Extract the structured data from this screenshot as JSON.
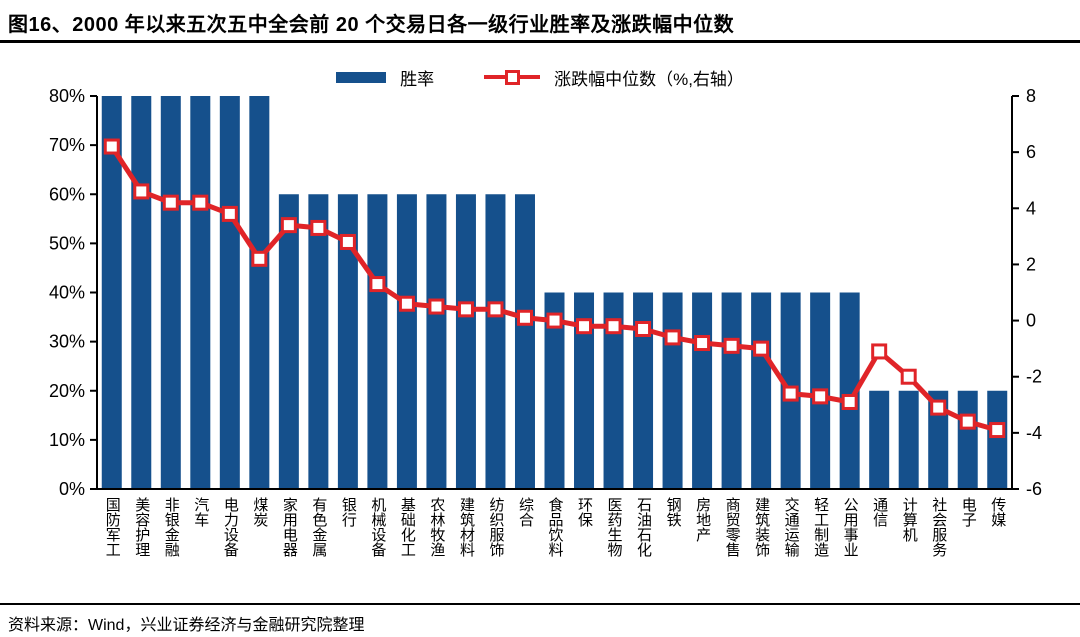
{
  "header": {
    "title": "图16、2000 年以来五次五中全会前 20 个交易日各一级行业胜率及涨跌幅中位数"
  },
  "legend": {
    "bar_label": "胜率",
    "line_label": "涨跌幅中位数（%,右轴）"
  },
  "footer": {
    "source": "资料来源：Wind，兴业证券经济与金融研究院整理"
  },
  "colors": {
    "bar_blue": "#15508C",
    "line_red": "#E02428",
    "marker_fill": "#FFFFFF",
    "axis_black": "#000000"
  },
  "chart_data": {
    "type": "bar",
    "title": "2000年以来五次五中全会前20个交易日各一级行业胜率及涨跌幅中位数",
    "categories": [
      "国防军工",
      "美容护理",
      "非银金融",
      "汽车",
      "电力设备",
      "煤炭",
      "家用电器",
      "有色金属",
      "银行",
      "机械设备",
      "基础化工",
      "农林牧渔",
      "建筑材料",
      "纺织服饰",
      "综合",
      "食品饮料",
      "环保",
      "医药生物",
      "石油石化",
      "钢铁",
      "房地产",
      "商贸零售",
      "建筑装饰",
      "交通运输",
      "轻工制造",
      "公用事业",
      "通信",
      "计算机",
      "社会服务",
      "电子",
      "传媒"
    ],
    "series": [
      {
        "name": "胜率",
        "type": "bar",
        "axis": "left",
        "unit": "%",
        "values": [
          80,
          80,
          80,
          80,
          80,
          80,
          60,
          60,
          60,
          60,
          60,
          60,
          60,
          60,
          60,
          40,
          40,
          40,
          40,
          40,
          40,
          40,
          40,
          40,
          40,
          40,
          20,
          20,
          20,
          20,
          20
        ]
      },
      {
        "name": "涨跌幅中位数",
        "type": "line",
        "axis": "right",
        "unit": "%",
        "values": [
          6.2,
          4.6,
          4.2,
          4.2,
          3.8,
          2.2,
          3.4,
          3.3,
          2.8,
          1.3,
          0.6,
          0.5,
          0.4,
          0.4,
          0.1,
          0.0,
          -0.2,
          -0.2,
          -0.3,
          -0.6,
          -0.8,
          -0.9,
          -1.0,
          -2.6,
          -2.7,
          -2.9,
          -1.1,
          -2.0,
          -3.1,
          -3.6,
          -3.9
        ]
      }
    ],
    "left_axis": {
      "min": 0,
      "max": 80,
      "ticks": [
        "80%",
        "70%",
        "60%",
        "50%",
        "40%",
        "30%",
        "20%",
        "10%",
        "0%"
      ]
    },
    "right_axis": {
      "min": -6,
      "max": 8,
      "ticks": [
        "8",
        "6",
        "4",
        "2",
        "0",
        "-2",
        "-4",
        "-6"
      ]
    },
    "grid": false,
    "legend_position": "top"
  }
}
